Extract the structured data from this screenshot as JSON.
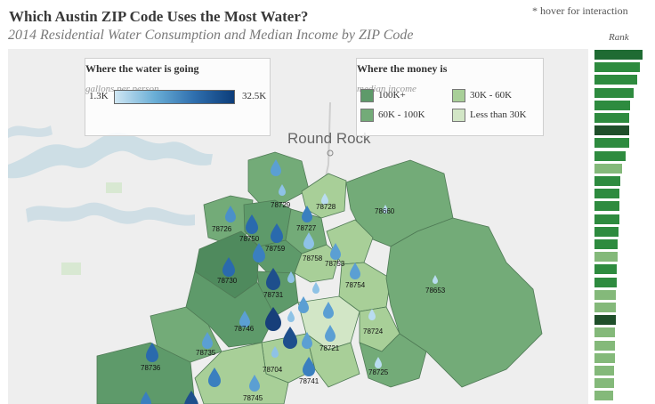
{
  "title": "Which Austin ZIP Code Uses the Most Water?",
  "subtitle": "2014 Residential Water Consumption and Median Income by ZIP Code",
  "hover_note": "* hover for interaction",
  "rank_label": "Rank",
  "map": {
    "city_label": "Round Rock",
    "zip_labels": [
      "78729",
      "78728",
      "78660",
      "78726",
      "78750",
      "78727",
      "78759",
      "78758",
      "78753",
      "78730",
      "78731",
      "78754",
      "78653",
      "78746",
      "78724",
      "78735",
      "78721",
      "78736",
      "78704",
      "78741",
      "78725",
      "78745"
    ],
    "income_colors": {
      "100K+": "#5e9a6a",
      "60K - 100K": "#73ab78",
      "30K - 60K": "#a8cf98",
      "Less than 30K": "#d2e6c6"
    }
  },
  "legend_water": {
    "title": "Where the water is going",
    "subtitle": "gallons per person",
    "min_label": "1.3K",
    "max_label": "32.5K"
  },
  "legend_income": {
    "title": "Where the money is",
    "subtitle": "median income",
    "items": [
      {
        "label": "100K+",
        "color": "#5e9a6a"
      },
      {
        "label": "30K - 60K",
        "color": "#a8cf98"
      },
      {
        "label": "60K - 100K",
        "color": "#73ab78"
      },
      {
        "label": "Less than 30K",
        "color": "#d2e6c6"
      }
    ]
  },
  "rank_bars": [
    {
      "rel": 1.0,
      "color": "#1f6b33"
    },
    {
      "rel": 0.95,
      "color": "#2e8b3f"
    },
    {
      "rel": 0.88,
      "color": "#2e8b3f"
    },
    {
      "rel": 0.82,
      "color": "#2e8b3f"
    },
    {
      "rel": 0.74,
      "color": "#2e8b3f"
    },
    {
      "rel": 0.72,
      "color": "#2e8b3f"
    },
    {
      "rel": 0.72,
      "color": "#1f4f2a"
    },
    {
      "rel": 0.72,
      "color": "#2e8b3f"
    },
    {
      "rel": 0.64,
      "color": "#2e8b3f"
    },
    {
      "rel": 0.58,
      "color": "#84b97a"
    },
    {
      "rel": 0.54,
      "color": "#2e8b3f"
    },
    {
      "rel": 0.52,
      "color": "#2e8b3f"
    },
    {
      "rel": 0.52,
      "color": "#2e8b3f"
    },
    {
      "rel": 0.52,
      "color": "#2e8b3f"
    },
    {
      "rel": 0.5,
      "color": "#2e8b3f"
    },
    {
      "rel": 0.48,
      "color": "#2e8b3f"
    },
    {
      "rel": 0.48,
      "color": "#84b97a"
    },
    {
      "rel": 0.46,
      "color": "#2e8b3f"
    },
    {
      "rel": 0.46,
      "color": "#2e8b3f"
    },
    {
      "rel": 0.44,
      "color": "#84b97a"
    },
    {
      "rel": 0.44,
      "color": "#84b97a"
    },
    {
      "rel": 0.44,
      "color": "#1f4f2a"
    },
    {
      "rel": 0.43,
      "color": "#84b97a"
    },
    {
      "rel": 0.42,
      "color": "#84b97a"
    },
    {
      "rel": 0.42,
      "color": "#84b97a"
    },
    {
      "rel": 0.4,
      "color": "#84b97a"
    },
    {
      "rel": 0.4,
      "color": "#84b97a"
    },
    {
      "rel": 0.38,
      "color": "#84b97a"
    }
  ]
}
